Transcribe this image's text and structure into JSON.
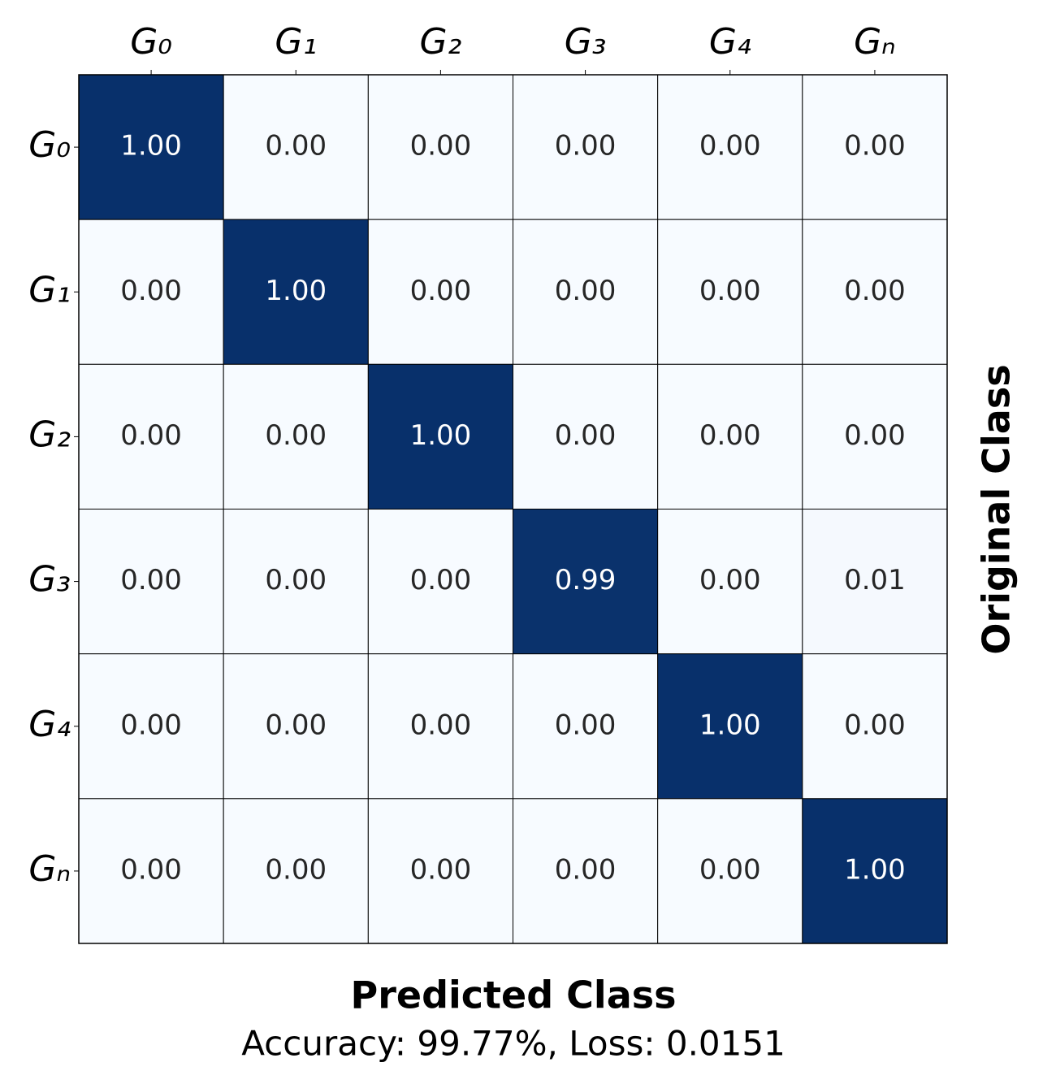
{
  "chart_data": {
    "type": "heatmap",
    "x_label": "Predicted Class",
    "y_label": "Original Class",
    "subtitle": "Accuracy: 99.77%, Loss: 0.0151",
    "x_categories": [
      "G₀",
      "G₁",
      "G₂",
      "G₃",
      "G₄",
      "Gₙ"
    ],
    "y_categories": [
      "G₀",
      "G₁",
      "G₂",
      "G₃",
      "G₄",
      "Gₙ"
    ],
    "values": [
      [
        1,
        0,
        0,
        0,
        0,
        0
      ],
      [
        0,
        1,
        0,
        0,
        0,
        0
      ],
      [
        0,
        0,
        1,
        0,
        0,
        0
      ],
      [
        0,
        0,
        0,
        0.99,
        0,
        0.01
      ],
      [
        0,
        0,
        0,
        0,
        1,
        0
      ],
      [
        0,
        0,
        0,
        0,
        0,
        1
      ]
    ],
    "value_labels": [
      [
        "1.00",
        "0.00",
        "0.00",
        "0.00",
        "0.00",
        "0.00"
      ],
      [
        "0.00",
        "1.00",
        "0.00",
        "0.00",
        "0.00",
        "0.00"
      ],
      [
        "0.00",
        "0.00",
        "1.00",
        "0.00",
        "0.00",
        "0.00"
      ],
      [
        "0.00",
        "0.00",
        "0.00",
        "0.99",
        "0.00",
        "0.01"
      ],
      [
        "0.00",
        "0.00",
        "0.00",
        "0.00",
        "1.00",
        "0.00"
      ],
      [
        "0.00",
        "0.00",
        "0.00",
        "0.00",
        "0.00",
        "1.00"
      ]
    ],
    "colors": [
      "#f7fbff",
      "#08306b"
    ]
  }
}
